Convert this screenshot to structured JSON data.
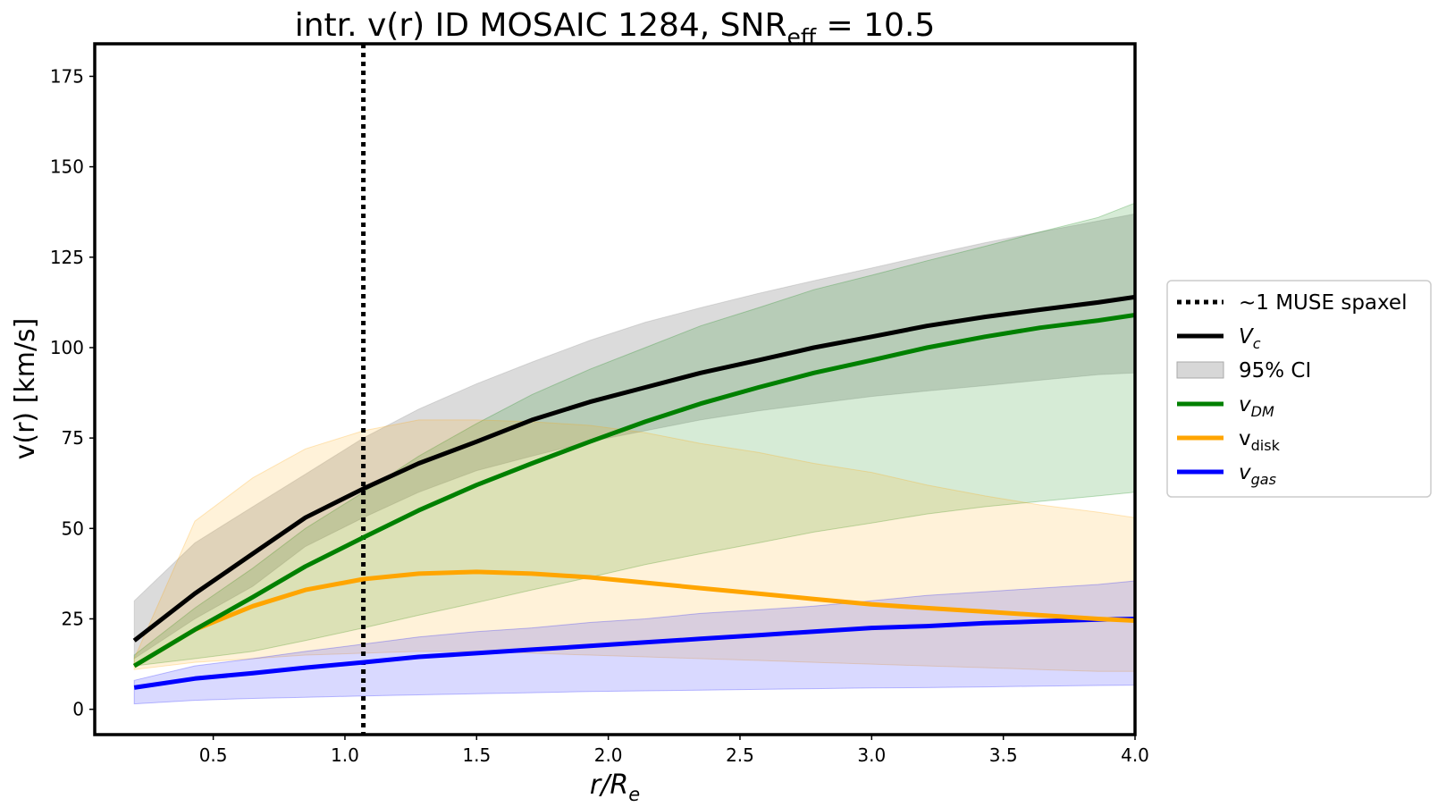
{
  "chart_data": {
    "type": "line",
    "title": {
      "main": "intr. v(r) ID MOSAIC 1284, SNR",
      "sub": "eff",
      "tail": " = 10.5"
    },
    "xlabel": {
      "main": "r/R",
      "sub": "e"
    },
    "ylabel": "v(r) [km/s]",
    "xlim": [
      0.05,
      4.0
    ],
    "ylim": [
      -7,
      184
    ],
    "xticks": [
      0.5,
      1.0,
      1.5,
      2.0,
      2.5,
      3.0,
      3.5,
      4.0
    ],
    "xtick_labels": [
      "0.5",
      "1.0",
      "1.5",
      "2.0",
      "2.5",
      "3.0",
      "3.5",
      "4.0"
    ],
    "yticks": [
      0,
      25,
      50,
      75,
      100,
      125,
      150,
      175
    ],
    "ytick_labels": [
      "0",
      "25",
      "50",
      "75",
      "100",
      "125",
      "150",
      "175"
    ],
    "grid": false,
    "legend_position": "right-outside",
    "vline": {
      "x": 1.07,
      "style": "dotted",
      "color": "#000000"
    },
    "legend": [
      {
        "key": "vline",
        "kind": "dotted",
        "color": "#000000",
        "main": "~1 MUSE spaxel",
        "sub": "",
        "italic": false
      },
      {
        "key": "vc",
        "kind": "line",
        "color": "#000000",
        "main": "V",
        "sub": "c",
        "italic": true
      },
      {
        "key": "ci",
        "kind": "patch",
        "color": "#bdbdbd",
        "main": "95% CI",
        "sub": "",
        "italic": false
      },
      {
        "key": "vdm",
        "kind": "line",
        "color": "#008000",
        "main": "v",
        "sub": "DM",
        "italic": true
      },
      {
        "key": "vdisk",
        "kind": "line",
        "color": "#ffa500",
        "main": "v",
        "sub": "disk",
        "italic": false
      },
      {
        "key": "vgas",
        "kind": "line",
        "color": "#0000ff",
        "main": "v",
        "sub": "gas",
        "italic": true
      }
    ],
    "x": [
      0.2,
      0.43,
      0.65,
      0.85,
      1.07,
      1.28,
      1.5,
      1.71,
      1.93,
      2.14,
      2.35,
      2.57,
      2.78,
      3.0,
      3.21,
      3.43,
      3.64,
      3.86,
      4.0
    ],
    "series": [
      {
        "key": "vc",
        "color": "#000000",
        "values": [
          19,
          32,
          43,
          53,
          61,
          68,
          74,
          80,
          85,
          89,
          93,
          96.5,
          100,
          103,
          106,
          108.5,
          110.5,
          112.5,
          114
        ],
        "band_lower": [
          14,
          25,
          34,
          45,
          53,
          60,
          66,
          70,
          74,
          77,
          80,
          82.5,
          84.5,
          86.5,
          88,
          89.5,
          91,
          92.5,
          93
        ],
        "band_upper": [
          30,
          46,
          56,
          65,
          75,
          83,
          90,
          96,
          102,
          107,
          111,
          115,
          118.5,
          122,
          125.5,
          129,
          132,
          135,
          137
        ]
      },
      {
        "key": "vdm",
        "color": "#008000",
        "values": [
          12,
          22,
          31,
          39.5,
          47.5,
          55,
          62,
          68,
          74,
          79.5,
          84.5,
          89,
          93,
          96.5,
          100,
          103,
          105.5,
          107.5,
          109
        ],
        "band_lower": [
          12,
          14,
          16,
          19,
          22.5,
          26,
          29.5,
          33,
          36.5,
          40,
          43,
          46,
          49,
          51.5,
          54,
          56,
          57.5,
          59,
          60
        ],
        "band_upper": [
          15,
          28,
          39,
          50,
          60,
          70,
          79,
          87,
          94,
          100,
          106,
          111,
          116,
          120,
          124,
          128,
          132,
          136,
          140
        ]
      },
      {
        "key": "vdisk",
        "color": "#ffa500",
        "values": [
          12,
          22,
          28.5,
          33,
          36,
          37.5,
          38,
          37.5,
          36.5,
          35,
          33.5,
          32,
          30.5,
          29,
          28,
          27,
          26,
          25,
          24.5
        ],
        "band_lower": [
          11,
          13,
          14,
          15,
          15.5,
          16,
          16,
          15.5,
          15,
          14.5,
          14,
          13.5,
          13,
          12.5,
          12,
          11.5,
          11,
          10.5,
          10.5
        ],
        "band_upper": [
          14,
          52,
          64,
          72,
          77,
          80,
          80,
          79.5,
          78.5,
          76.5,
          73.5,
          71,
          68,
          65.5,
          62,
          59,
          56.5,
          54.5,
          53
        ]
      },
      {
        "key": "vgas",
        "color": "#0000ff",
        "values": [
          6,
          8.5,
          10,
          11.5,
          13,
          14.5,
          15.5,
          16.5,
          17.5,
          18.5,
          19.5,
          20.5,
          21.5,
          22.5,
          23,
          23.8,
          24.3,
          24.8,
          25
        ],
        "band_lower": [
          1.5,
          2.5,
          3,
          3.3,
          3.7,
          4,
          4.3,
          4.6,
          4.9,
          5.1,
          5.3,
          5.5,
          5.7,
          5.9,
          6,
          6.2,
          6.4,
          6.6,
          6.7
        ],
        "band_upper": [
          8,
          12,
          14,
          16,
          18,
          20,
          21.5,
          22.5,
          24,
          25,
          26.5,
          27.5,
          28.5,
          30,
          31.5,
          32.5,
          33.5,
          34.5,
          35.5
        ]
      }
    ]
  }
}
